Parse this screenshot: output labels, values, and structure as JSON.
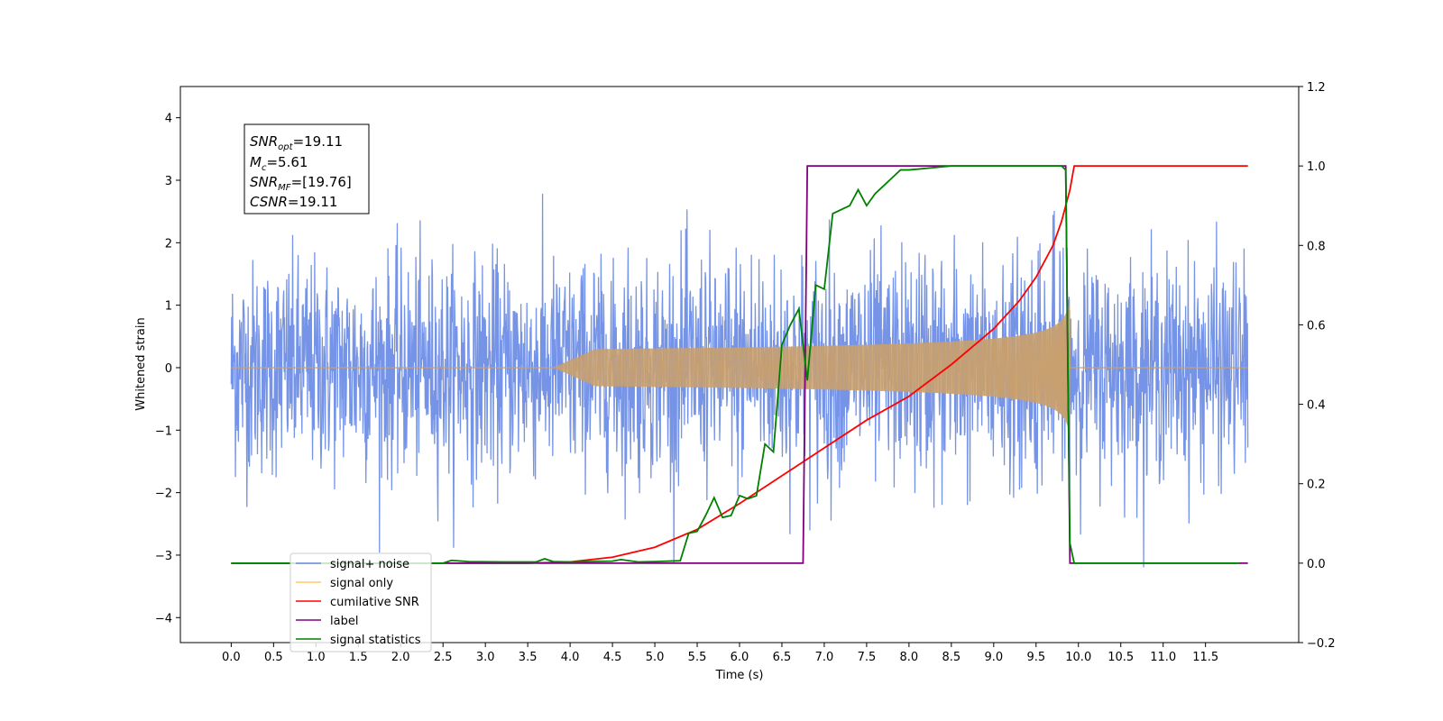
{
  "chart_data": {
    "type": "line",
    "xlabel": "Time (s)",
    "ylabel": "Whitened strain",
    "xlim": [
      -0.6,
      12.6
    ],
    "ylim": [
      -4.4,
      4.5
    ],
    "y2lim": [
      -0.2,
      1.2
    ],
    "x_ticks": [
      "0.0",
      "0.5",
      "1.0",
      "1.5",
      "2.0",
      "2.5",
      "3.0",
      "3.5",
      "4.0",
      "4.5",
      "5.0",
      "5.5",
      "6.0",
      "6.5",
      "7.0",
      "7.5",
      "8.0",
      "8.5",
      "9.0",
      "9.5",
      "10.0",
      "10.5",
      "11.0",
      "11.5"
    ],
    "y_ticks": [
      "−4",
      "−3",
      "−2",
      "−1",
      "0",
      "1",
      "2",
      "3",
      "4"
    ],
    "y2_ticks": [
      "−0.2",
      "0.0",
      "0.2",
      "0.4",
      "0.6",
      "0.8",
      "1.0",
      "1.2"
    ],
    "annotation": {
      "snr_opt": {
        "main": "SNR",
        "sub": "opt",
        "value": "=19.11"
      },
      "mc": {
        "main": "M",
        "sub": "c",
        "value": "=5.61"
      },
      "snr_mf": {
        "main": "SNR",
        "sub": "MF",
        "value": "=[19.76]"
      },
      "csnr": {
        "main": "CSNR",
        "sub": "",
        "value": "=19.11"
      }
    },
    "legend": {
      "placement": "lower-left",
      "entries": [
        {
          "name": "signal+ noise",
          "color": "#6f8ee6"
        },
        {
          "name": "signal only",
          "color": "#ffc966"
        },
        {
          "name": "cumilative SNR",
          "color": "#ff0000"
        },
        {
          "name": "label",
          "color": "#800080"
        },
        {
          "name": "signal statistics",
          "color": "#008000"
        }
      ]
    },
    "signal_noise": {
      "x_range": [
        0.0,
        12.0
      ],
      "noise_sigma": 0.85,
      "color": "#6f8ee6"
    },
    "signal_only": {
      "start": 3.8,
      "merger": 9.9,
      "peak_amplitude": 1.1,
      "color": "#c8a070"
    },
    "series": [
      {
        "name": "cumilative SNR",
        "axis": "right",
        "color": "#ff0000",
        "x": [
          0.0,
          3.5,
          4.0,
          4.5,
          5.0,
          5.5,
          6.0,
          6.5,
          7.0,
          7.5,
          8.0,
          8.5,
          9.0,
          9.3,
          9.5,
          9.7,
          9.8,
          9.9,
          9.95,
          10.0,
          11.0,
          12.0
        ],
        "y": [
          0.0,
          0.0,
          0.003,
          0.015,
          0.04,
          0.085,
          0.15,
          0.22,
          0.29,
          0.36,
          0.42,
          0.5,
          0.59,
          0.66,
          0.72,
          0.8,
          0.86,
          0.94,
          1.0,
          1.0,
          1.0,
          1.0
        ]
      },
      {
        "name": "label",
        "axis": "right",
        "color": "#800080",
        "x": [
          0.0,
          6.75,
          6.8,
          9.85,
          9.9,
          12.0
        ],
        "y": [
          0.0,
          0.0,
          1.0,
          1.0,
          0.0,
          0.0
        ]
      },
      {
        "name": "signal statistics",
        "axis": "right",
        "color": "#008000",
        "x": [
          0.0,
          2.5,
          2.6,
          2.8,
          3.2,
          3.6,
          3.7,
          3.8,
          4.0,
          4.2,
          4.5,
          4.6,
          4.8,
          5.0,
          5.3,
          5.4,
          5.5,
          5.6,
          5.7,
          5.8,
          5.9,
          6.0,
          6.1,
          6.2,
          6.3,
          6.4,
          6.5,
          6.6,
          6.7,
          6.8,
          6.9,
          7.0,
          7.1,
          7.2,
          7.3,
          7.4,
          7.5,
          7.6,
          7.7,
          7.8,
          7.9,
          8.0,
          8.5,
          9.0,
          9.5,
          9.8,
          9.85,
          9.9,
          9.95,
          10.0,
          11.0,
          11.9
        ],
        "y": [
          0.0,
          0.0,
          0.007,
          0.004,
          0.003,
          0.003,
          0.011,
          0.004,
          0.003,
          0.004,
          0.005,
          0.009,
          0.003,
          0.004,
          0.006,
          0.075,
          0.08,
          0.12,
          0.165,
          0.115,
          0.12,
          0.17,
          0.162,
          0.17,
          0.3,
          0.28,
          0.55,
          0.6,
          0.64,
          0.46,
          0.7,
          0.69,
          0.88,
          0.89,
          0.9,
          0.94,
          0.9,
          0.93,
          0.95,
          0.97,
          0.99,
          0.99,
          1.0,
          1.0,
          1.0,
          1.0,
          0.99,
          0.05,
          0.0,
          0.0,
          0.0,
          0.0
        ]
      }
    ]
  }
}
